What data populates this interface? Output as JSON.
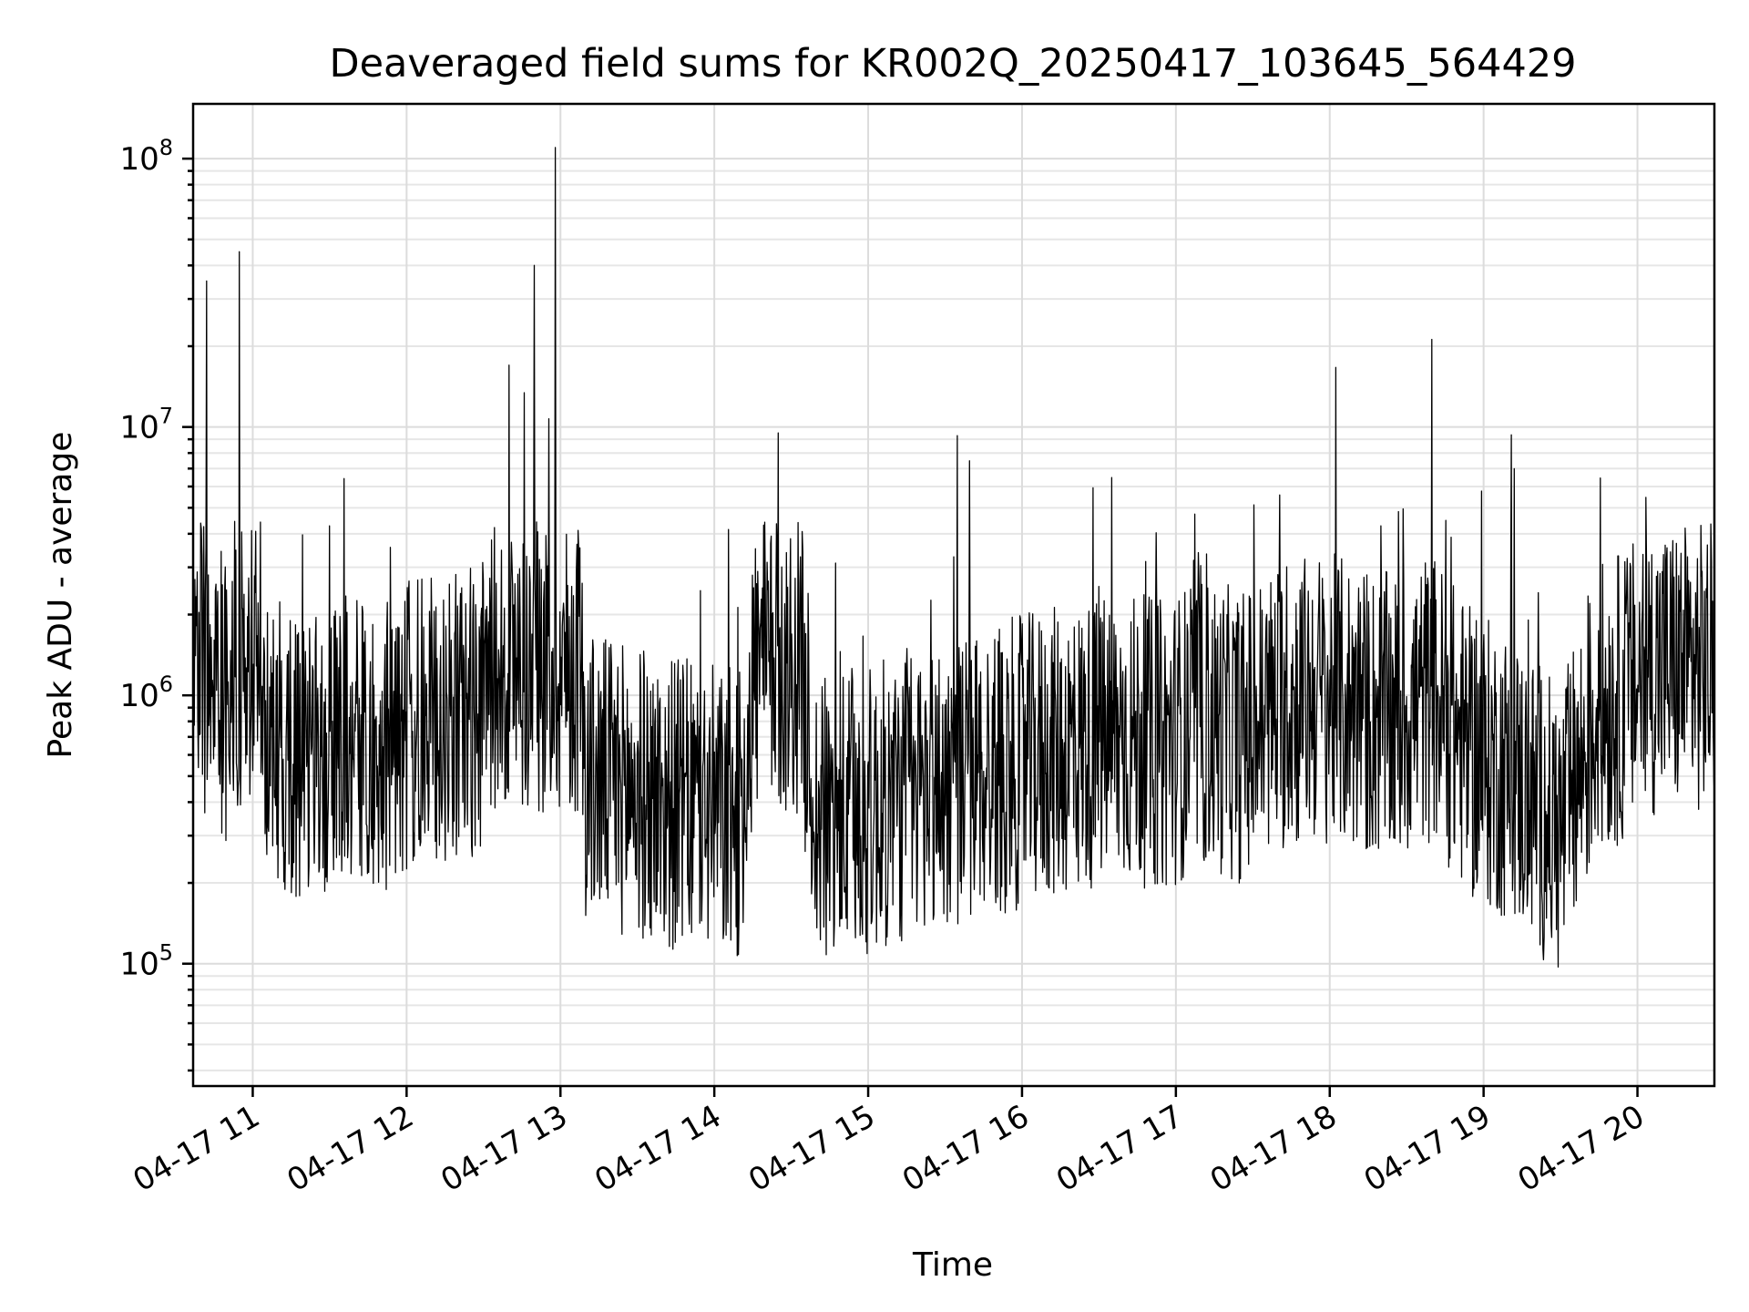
{
  "chart_data": {
    "type": "line",
    "title": "Deaveraged field sums for KR002Q_20250417_103645_564429",
    "xlabel": "Time",
    "ylabel": "Peak ADU - average",
    "yscale": "log",
    "ylim": [
      35000,
      160000000
    ],
    "xlim": [
      "2025-04-17 10:36:45",
      "2025-04-17 20:30:00"
    ],
    "grid": "on",
    "legend": "none",
    "series_color": "#000000",
    "x_ticks": [
      {
        "value": "2025-04-17 11:00",
        "label": "04-17 11"
      },
      {
        "value": "2025-04-17 12:00",
        "label": "04-17 12"
      },
      {
        "value": "2025-04-17 13:00",
        "label": "04-17 13"
      },
      {
        "value": "2025-04-17 14:00",
        "label": "04-17 14"
      },
      {
        "value": "2025-04-17 15:00",
        "label": "04-17 15"
      },
      {
        "value": "2025-04-17 16:00",
        "label": "04-17 16"
      },
      {
        "value": "2025-04-17 17:00",
        "label": "04-17 17"
      },
      {
        "value": "2025-04-17 18:00",
        "label": "04-17 18"
      },
      {
        "value": "2025-04-17 19:00",
        "label": "04-17 19"
      },
      {
        "value": "2025-04-17 20:00",
        "label": "04-17 20"
      }
    ],
    "y_ticks": [
      {
        "value": 100000,
        "base": "10",
        "exp": "5"
      },
      {
        "value": 1000000,
        "base": "10",
        "exp": "6"
      },
      {
        "value": 10000000,
        "base": "10",
        "exp": "7"
      },
      {
        "value": 100000000,
        "base": "10",
        "exp": "8"
      }
    ],
    "series": [
      {
        "x": [
          "2025-04-17 10:37",
          "2025-04-17 10:42",
          "2025-04-17 10:46",
          "2025-04-17 10:50",
          "2025-04-17 10:55",
          "2025-04-17 11:05",
          "2025-04-17 11:15",
          "2025-04-17 11:25",
          "2025-04-17 11:35",
          "2025-04-17 11:45",
          "2025-04-17 12:00",
          "2025-04-17 12:15",
          "2025-04-17 12:30",
          "2025-04-17 12:40",
          "2025-04-17 12:50",
          "2025-04-17 12:58",
          "2025-04-17 13:10",
          "2025-04-17 13:25",
          "2025-04-17 13:40",
          "2025-04-17 13:55",
          "2025-04-17 14:10",
          "2025-04-17 14:25",
          "2025-04-17 14:40",
          "2025-04-17 14:55",
          "2025-04-17 15:10",
          "2025-04-17 15:25",
          "2025-04-17 15:40",
          "2025-04-17 15:55",
          "2025-04-17 16:10",
          "2025-04-17 16:25",
          "2025-04-17 16:40",
          "2025-04-17 16:55",
          "2025-04-17 17:10",
          "2025-04-17 17:25",
          "2025-04-17 17:40",
          "2025-04-17 17:55",
          "2025-04-17 18:10",
          "2025-04-17 18:25",
          "2025-04-17 18:40",
          "2025-04-17 18:55",
          "2025-04-17 19:10",
          "2025-04-17 19:20",
          "2025-04-17 19:30",
          "2025-04-17 19:45",
          "2025-04-17 19:55",
          "2025-04-17 20:10",
          "2025-04-17 20:25"
        ],
        "y": [
          1500000,
          35000000,
          1200000,
          900000,
          45000000,
          700000,
          600000,
          550000,
          700000,
          600000,
          750000,
          800000,
          900000,
          17000000,
          40000000,
          110000000,
          500000,
          450000,
          400000,
          380000,
          350000,
          9500000,
          330000,
          350000,
          400000,
          450000,
          500000,
          550000,
          600000,
          650000,
          700000,
          650000,
          800000,
          700000,
          900000,
          1000000,
          900000,
          800000,
          1000000,
          600000,
          500000,
          400000,
          300000,
          900000,
          1000000,
          1400000,
          1500000
        ]
      }
    ]
  }
}
